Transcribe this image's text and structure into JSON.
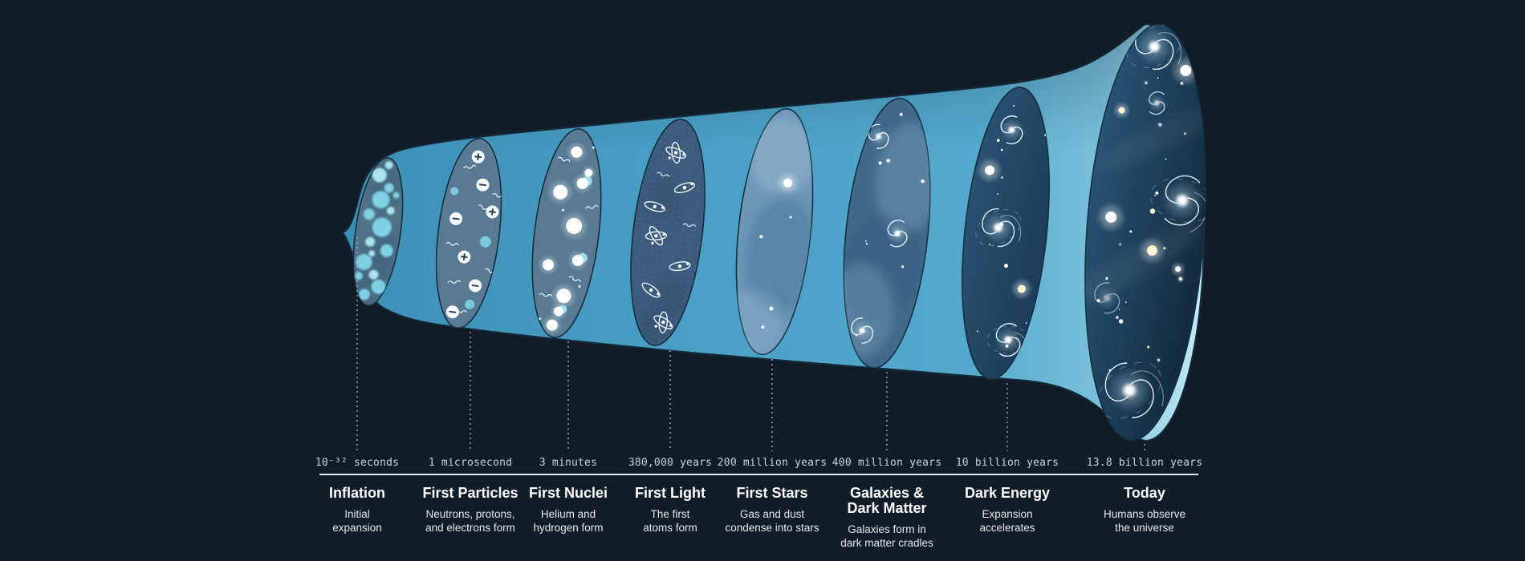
{
  "colors": {
    "background": "#121c26",
    "axis_line": "#dfe7ec",
    "ink": "#ffffff",
    "muted_text": "#c9d3da",
    "desc_text": "#e3e9ed",
    "cone_accent": "#4aa0c5"
  },
  "timeline": {
    "events": [
      {
        "time": "10⁻³² seconds",
        "title": "Inflation",
        "description": "Initial\nexpansion"
      },
      {
        "time": "1 microsecond",
        "title": "First Particles",
        "description": "Neutrons, protons,\nand electrons form"
      },
      {
        "time": "3 minutes",
        "title": "First Nuclei",
        "description": "Helium and\nhydrogen form"
      },
      {
        "time": "380,000 years",
        "title": "First Light",
        "description": "The first\natoms form"
      },
      {
        "time": "200 million years",
        "title": "First Stars",
        "description": "Gas and dust\ncondense into stars"
      },
      {
        "time": "400 million years",
        "title": "Galaxies &\nDark Matter",
        "description": "Galaxies form in\ndark matter cradles"
      },
      {
        "time": "10 billion years",
        "title": "Dark Energy",
        "description": "Expansion\naccelerates"
      },
      {
        "time": "13.8 billion years",
        "title": "Today",
        "description": "Humans observe\nthe universe"
      }
    ]
  }
}
